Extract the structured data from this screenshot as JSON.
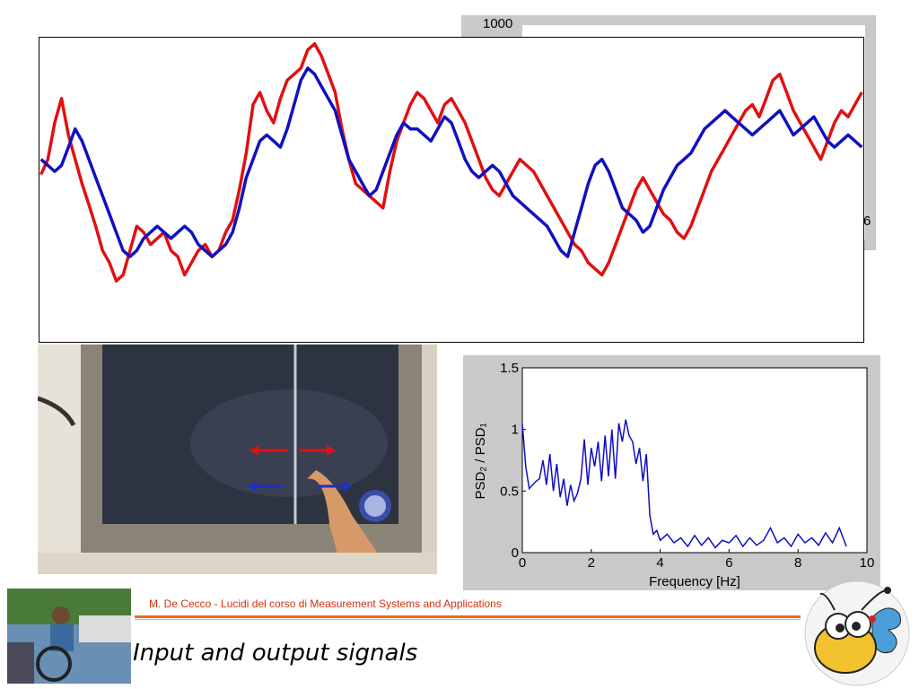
{
  "chart_data": [
    {
      "type": "line",
      "title": "",
      "series": [
        {
          "color": "#e01010",
          "x": [
            0,
            1,
            2,
            3,
            4,
            5,
            6,
            7,
            8,
            9,
            10,
            11,
            12,
            13,
            14,
            15,
            16,
            17,
            18,
            19,
            20,
            21,
            22,
            23,
            24,
            25,
            26,
            27,
            28,
            29,
            30,
            31,
            32,
            33,
            34,
            35,
            36,
            37,
            38,
            39,
            40,
            41,
            42,
            43,
            44,
            45,
            46,
            47,
            48,
            49,
            50,
            51,
            52,
            53,
            54,
            55,
            56,
            57,
            58,
            59,
            60,
            61,
            62,
            63,
            64,
            65,
            66,
            67,
            68,
            69,
            70,
            71,
            72,
            73,
            74,
            75,
            76,
            77,
            78,
            79,
            80,
            81,
            82,
            83,
            84,
            85,
            86,
            87,
            88,
            89,
            90,
            91,
            92,
            93,
            94,
            95,
            96,
            97,
            98,
            99,
            100,
            101,
            102,
            103,
            104,
            105,
            106,
            107,
            108,
            109,
            110,
            111,
            112,
            113,
            114,
            115,
            116,
            117,
            118,
            119,
            120
          ],
          "values": [
            0.55,
            0.6,
            0.72,
            0.8,
            0.68,
            0.6,
            0.52,
            0.45,
            0.38,
            0.3,
            0.26,
            0.2,
            0.22,
            0.3,
            0.38,
            0.36,
            0.32,
            0.34,
            0.36,
            0.3,
            0.28,
            0.22,
            0.26,
            0.3,
            0.32,
            0.28,
            0.3,
            0.36,
            0.4,
            0.5,
            0.62,
            0.78,
            0.82,
            0.76,
            0.72,
            0.8,
            0.86,
            0.88,
            0.9,
            0.96,
            0.98,
            0.94,
            0.88,
            0.82,
            0.7,
            0.6,
            0.52,
            0.5,
            0.48,
            0.46,
            0.44,
            0.56,
            0.66,
            0.72,
            0.78,
            0.82,
            0.8,
            0.76,
            0.72,
            0.78,
            0.8,
            0.76,
            0.72,
            0.66,
            0.6,
            0.54,
            0.5,
            0.48,
            0.52,
            0.56,
            0.6,
            0.58,
            0.56,
            0.52,
            0.48,
            0.44,
            0.4,
            0.36,
            0.32,
            0.3,
            0.26,
            0.24,
            0.22,
            0.26,
            0.32,
            0.38,
            0.44,
            0.5,
            0.54,
            0.5,
            0.46,
            0.42,
            0.4,
            0.36,
            0.34,
            0.38,
            0.44,
            0.5,
            0.56,
            0.6,
            0.64,
            0.68,
            0.72,
            0.76,
            0.78,
            0.74,
            0.8,
            0.86,
            0.88,
            0.82,
            0.76,
            0.72,
            0.68,
            0.64,
            0.6,
            0.66,
            0.72,
            0.76,
            0.74,
            0.78,
            0.82
          ]
        },
        {
          "color": "#1010c0",
          "x": [
            0,
            1,
            2,
            3,
            4,
            5,
            6,
            7,
            8,
            9,
            10,
            11,
            12,
            13,
            14,
            15,
            16,
            17,
            18,
            19,
            20,
            21,
            22,
            23,
            24,
            25,
            26,
            27,
            28,
            29,
            30,
            31,
            32,
            33,
            34,
            35,
            36,
            37,
            38,
            39,
            40,
            41,
            42,
            43,
            44,
            45,
            46,
            47,
            48,
            49,
            50,
            51,
            52,
            53,
            54,
            55,
            56,
            57,
            58,
            59,
            60,
            61,
            62,
            63,
            64,
            65,
            66,
            67,
            68,
            69,
            70,
            71,
            72,
            73,
            74,
            75,
            76,
            77,
            78,
            79,
            80,
            81,
            82,
            83,
            84,
            85,
            86,
            87,
            88,
            89,
            90,
            91,
            92,
            93,
            94,
            95,
            96,
            97,
            98,
            99,
            100,
            101,
            102,
            103,
            104,
            105,
            106,
            107,
            108,
            109,
            110,
            111,
            112,
            113,
            114,
            115,
            116,
            117,
            118,
            119,
            120
          ],
          "values": [
            0.6,
            0.58,
            0.56,
            0.58,
            0.64,
            0.7,
            0.66,
            0.6,
            0.54,
            0.48,
            0.42,
            0.36,
            0.3,
            0.28,
            0.3,
            0.34,
            0.36,
            0.38,
            0.36,
            0.34,
            0.36,
            0.38,
            0.36,
            0.32,
            0.3,
            0.28,
            0.3,
            0.32,
            0.36,
            0.44,
            0.54,
            0.6,
            0.66,
            0.68,
            0.66,
            0.64,
            0.7,
            0.78,
            0.86,
            0.9,
            0.88,
            0.84,
            0.8,
            0.76,
            0.68,
            0.6,
            0.56,
            0.52,
            0.48,
            0.5,
            0.56,
            0.62,
            0.68,
            0.72,
            0.7,
            0.7,
            0.68,
            0.66,
            0.7,
            0.74,
            0.72,
            0.66,
            0.6,
            0.56,
            0.54,
            0.56,
            0.58,
            0.56,
            0.52,
            0.48,
            0.46,
            0.44,
            0.42,
            0.4,
            0.38,
            0.34,
            0.3,
            0.28,
            0.36,
            0.44,
            0.52,
            0.58,
            0.6,
            0.56,
            0.5,
            0.44,
            0.42,
            0.4,
            0.36,
            0.38,
            0.44,
            0.5,
            0.54,
            0.58,
            0.6,
            0.62,
            0.66,
            0.7,
            0.72,
            0.74,
            0.76,
            0.74,
            0.72,
            0.7,
            0.68,
            0.7,
            0.72,
            0.74,
            0.76,
            0.72,
            0.68,
            0.7,
            0.72,
            0.74,
            0.7,
            0.66,
            0.64,
            0.66,
            0.68,
            0.66,
            0.64
          ]
        }
      ]
    },
    {
      "type": "line",
      "title": "",
      "xlabel": "Frequency [Hz]",
      "ylabel": "PSD₂ / PSD₁",
      "xlim": [
        0,
        10
      ],
      "ylim": [
        0,
        1.5
      ],
      "xticks": [
        "0",
        "2",
        "4",
        "6",
        "8",
        "10"
      ],
      "yticks": [
        "0",
        "0.5",
        "1",
        "1.5"
      ],
      "series": [
        {
          "color": "#1010c0",
          "x": [
            0,
            0.1,
            0.2,
            0.3,
            0.4,
            0.5,
            0.6,
            0.7,
            0.8,
            0.9,
            1.0,
            1.1,
            1.2,
            1.3,
            1.4,
            1.5,
            1.6,
            1.7,
            1.8,
            1.9,
            2.0,
            2.1,
            2.2,
            2.3,
            2.4,
            2.5,
            2.6,
            2.7,
            2.8,
            2.9,
            3.0,
            3.1,
            3.2,
            3.3,
            3.4,
            3.5,
            3.6,
            3.7,
            3.8,
            3.9,
            4.0,
            4.2,
            4.4,
            4.6,
            4.8,
            5.0,
            5.2,
            5.4,
            5.6,
            5.8,
            6.0,
            6.2,
            6.4,
            6.6,
            6.8,
            7.0,
            7.2,
            7.4,
            7.6,
            7.8,
            8.0,
            8.2,
            8.4,
            8.6,
            8.8,
            9.0,
            9.2,
            9.4
          ],
          "values": [
            1.05,
            0.7,
            0.52,
            0.55,
            0.58,
            0.6,
            0.75,
            0.55,
            0.8,
            0.5,
            0.72,
            0.45,
            0.6,
            0.38,
            0.55,
            0.42,
            0.48,
            0.6,
            0.92,
            0.55,
            0.85,
            0.7,
            0.9,
            0.58,
            0.95,
            0.62,
            1.0,
            0.6,
            1.05,
            0.9,
            1.08,
            0.95,
            0.9,
            0.72,
            0.85,
            0.58,
            0.8,
            0.3,
            0.15,
            0.18,
            0.1,
            0.15,
            0.08,
            0.12,
            0.05,
            0.14,
            0.06,
            0.12,
            0.04,
            0.1,
            0.08,
            0.14,
            0.05,
            0.12,
            0.06,
            0.1,
            0.2,
            0.08,
            0.12,
            0.05,
            0.15,
            0.08,
            0.12,
            0.06,
            0.16,
            0.08,
            0.2,
            0.05
          ]
        }
      ]
    }
  ],
  "background_chart": {
    "tick_top": "1000",
    "tick_right": "6"
  },
  "footer": {
    "credit": "M. De Cecco - Lucidi del corso di Measurement Systems and Applications",
    "title": "Input and output signals"
  }
}
